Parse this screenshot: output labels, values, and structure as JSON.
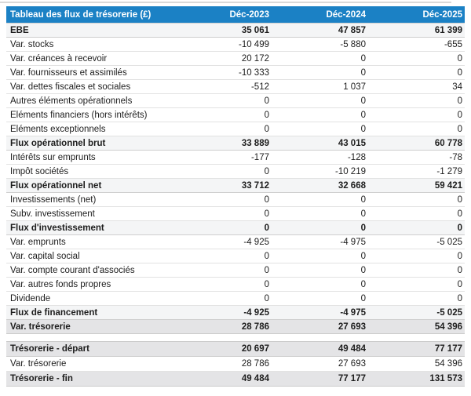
{
  "table": {
    "title": "Tableau des flux de trésorerie (£)",
    "columns": [
      "Déc-2023",
      "Déc-2024",
      "Déc-2025"
    ],
    "rows": [
      {
        "label": "EBE",
        "values": [
          "35 061",
          "47 857",
          "61 399"
        ],
        "style": "section"
      },
      {
        "label": "Var. stocks",
        "values": [
          "-10 499",
          "-5 880",
          "-655"
        ],
        "style": "normal"
      },
      {
        "label": "Var. créances à recevoir",
        "values": [
          "20 172",
          "0",
          "0"
        ],
        "style": "normal"
      },
      {
        "label": "Var. fournisseurs et assimilés",
        "values": [
          "-10 333",
          "0",
          "0"
        ],
        "style": "normal"
      },
      {
        "label": "Var. dettes fiscales et sociales",
        "values": [
          "-512",
          "1 037",
          "34"
        ],
        "style": "normal"
      },
      {
        "label": "Autres éléments opérationnels",
        "values": [
          "0",
          "0",
          "0"
        ],
        "style": "normal"
      },
      {
        "label": "Eléments financiers (hors intérêts)",
        "values": [
          "0",
          "0",
          "0"
        ],
        "style": "normal"
      },
      {
        "label": "Eléments exceptionnels",
        "values": [
          "0",
          "0",
          "0"
        ],
        "style": "normal"
      },
      {
        "label": "Flux opérationnel brut",
        "values": [
          "33 889",
          "43 015",
          "60 778"
        ],
        "style": "section"
      },
      {
        "label": "Intérêts sur emprunts",
        "values": [
          "-177",
          "-128",
          "-78"
        ],
        "style": "normal"
      },
      {
        "label": "Impôt sociétés",
        "values": [
          "0",
          "-10 219",
          "-1 279"
        ],
        "style": "normal"
      },
      {
        "label": "Flux opérationnel net",
        "values": [
          "33 712",
          "32 668",
          "59 421"
        ],
        "style": "section"
      },
      {
        "label": "Investissements (net)",
        "values": [
          "0",
          "0",
          "0"
        ],
        "style": "normal"
      },
      {
        "label": "Subv. investissement",
        "values": [
          "0",
          "0",
          "0"
        ],
        "style": "normal"
      },
      {
        "label": "Flux d'investissement",
        "values": [
          "0",
          "0",
          "0"
        ],
        "style": "section"
      },
      {
        "label": "Var. emprunts",
        "values": [
          "-4 925",
          "-4 975",
          "-5 025"
        ],
        "style": "normal"
      },
      {
        "label": "Var. capital social",
        "values": [
          "0",
          "0",
          "0"
        ],
        "style": "normal"
      },
      {
        "label": "Var. compte courant d'associés",
        "values": [
          "0",
          "0",
          "0"
        ],
        "style": "normal"
      },
      {
        "label": "Var. autres fonds propres",
        "values": [
          "0",
          "0",
          "0"
        ],
        "style": "normal"
      },
      {
        "label": "Dividende",
        "values": [
          "0",
          "0",
          "0"
        ],
        "style": "normal"
      },
      {
        "label": "Flux de financement",
        "values": [
          "-4 925",
          "-4 975",
          "-5 025"
        ],
        "style": "section"
      },
      {
        "label": "Var. trésorerie",
        "values": [
          "28 786",
          "27 693",
          "54 396"
        ],
        "style": "band"
      }
    ],
    "summary_rows": [
      {
        "label": "Trésorerie - départ",
        "values": [
          "20 697",
          "49 484",
          "77 177"
        ],
        "style": "band"
      },
      {
        "label": "Var. trésorerie",
        "values": [
          "28 786",
          "27 693",
          "54 396"
        ],
        "style": "normal"
      },
      {
        "label": "Trésorerie - fin",
        "values": [
          "49 484",
          "77 177",
          "131 573"
        ],
        "style": "band"
      }
    ]
  },
  "colors": {
    "header_bg": "#1b81c5",
    "header_text": "#ffffff",
    "section_bg": "#f4f5f6",
    "band_bg": "#e4e4e6",
    "text": "#1d1d1d"
  }
}
